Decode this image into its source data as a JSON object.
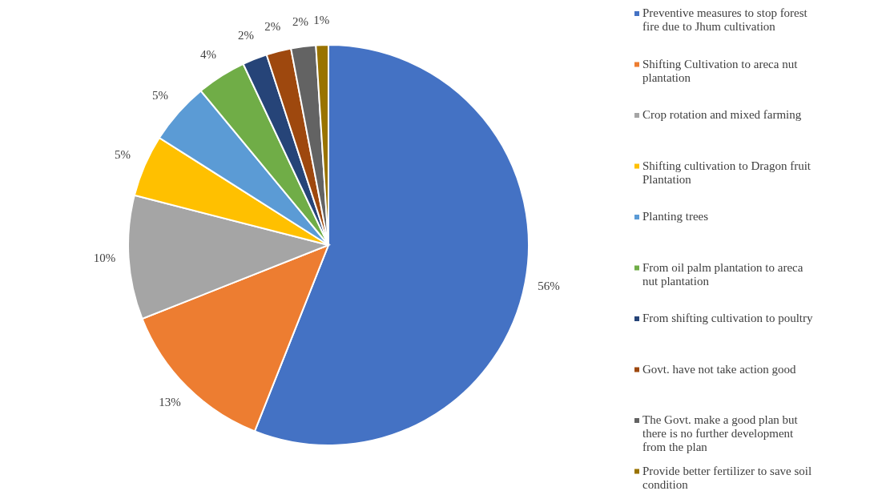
{
  "chart_data": {
    "type": "pie",
    "categories": [
      "Preventive measures to stop forest fire due to Jhum cultivation",
      "Shifting Cultivation to areca nut plantation",
      "Crop rotation and mixed farming",
      "Shifting cultivation to Dragon fruit Plantation",
      "Planting trees",
      "From oil palm plantation to areca nut plantation",
      "From shifting cultivation to poultry",
      "Govt. have not take action good",
      "The Govt. make a good plan but there is no further development from the plan",
      "Provide better fertilizer to save soil condition"
    ],
    "values": [
      56,
      13,
      10,
      5,
      5,
      4,
      2,
      2,
      2,
      1
    ],
    "colors": [
      "#4472c4",
      "#ed7d31",
      "#a5a5a5",
      "#ffc000",
      "#5b9bd5",
      "#70ad47",
      "#264478",
      "#9e480e",
      "#636363",
      "#997300"
    ],
    "value_labels": [
      "56%",
      "13%",
      "10%",
      "5%",
      "5%",
      "4%",
      "2%",
      "2%",
      "2%",
      "1%"
    ],
    "legend": "right"
  }
}
